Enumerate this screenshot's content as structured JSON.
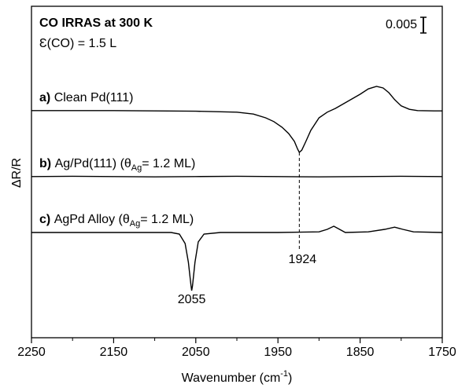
{
  "chart_data": {
    "type": "line",
    "title": "CO IRRAS at 300 K",
    "subtitle": "Ɛ(CO) = 1.5 L",
    "x_label_parts": [
      "Wavenumber (cm",
      "-1",
      ")"
    ],
    "y_label": "ΔR/R",
    "xlim": [
      2250,
      1750
    ],
    "xticks": [
      2250,
      2150,
      2050,
      1950,
      1850,
      1750
    ],
    "xminorticks": [
      2200,
      2100,
      2000,
      1900,
      1800
    ],
    "ylim": [
      0,
      0.1055
    ],
    "scale_bar": 0.005,
    "series": [
      {
        "prefix": "a)",
        "name_parts": [
          "Clean Pd(111)"
        ],
        "color": "#000000",
        "x": [
          2250,
          2200,
          2150,
          2100,
          2050,
          2000,
          1980,
          1965,
          1955,
          1945,
          1937,
          1930,
          1926,
          1924,
          1921,
          1916,
          1910,
          1900,
          1890,
          1880,
          1870,
          1860,
          1850,
          1840,
          1830,
          1822,
          1815,
          1808,
          1800,
          1790,
          1780,
          1760,
          1750
        ],
        "values": [
          0.0723,
          0.0723,
          0.0723,
          0.0722,
          0.0721,
          0.0718,
          0.0712,
          0.07,
          0.0688,
          0.067,
          0.065,
          0.0625,
          0.06,
          0.059,
          0.0597,
          0.0625,
          0.066,
          0.07,
          0.0718,
          0.073,
          0.0745,
          0.076,
          0.0775,
          0.0792,
          0.08,
          0.0795,
          0.078,
          0.0758,
          0.0738,
          0.0727,
          0.0723,
          0.0722,
          0.0722
        ]
      },
      {
        "prefix": "b)",
        "name_parts": [
          "Ag/Pd(111) (θ",
          "Ag",
          "= 1.2 ML)"
        ],
        "color": "#000000",
        "x": [
          2250,
          2200,
          2150,
          2100,
          2050,
          2000,
          1950,
          1900,
          1850,
          1800,
          1750
        ],
        "values": [
          0.0513,
          0.0514,
          0.0513,
          0.0512,
          0.0513,
          0.0514,
          0.0513,
          0.0512,
          0.0513,
          0.0514,
          0.0513
        ]
      },
      {
        "prefix": "c)",
        "name_parts": [
          "AgPd Alloy (θ",
          "Ag",
          "= 1.2 ML)"
        ],
        "color": "#000000",
        "x": [
          2250,
          2200,
          2150,
          2100,
          2080,
          2070,
          2063,
          2059,
          2056,
          2055,
          2054,
          2051,
          2047,
          2040,
          2020,
          1950,
          1900,
          1890,
          1882,
          1875,
          1868,
          1840,
          1820,
          1808,
          1798,
          1785,
          1750
        ],
        "values": [
          0.0335,
          0.0335,
          0.0335,
          0.0335,
          0.0335,
          0.033,
          0.03,
          0.024,
          0.017,
          0.015,
          0.0165,
          0.024,
          0.0305,
          0.033,
          0.0335,
          0.0335,
          0.0337,
          0.0345,
          0.0355,
          0.0345,
          0.0335,
          0.0337,
          0.0345,
          0.0352,
          0.0345,
          0.0337,
          0.0335
        ]
      }
    ],
    "annotations": [
      {
        "x": 1924,
        "series": 0,
        "line": true
      },
      {
        "x": 2055,
        "series": 2,
        "line": false
      }
    ]
  }
}
